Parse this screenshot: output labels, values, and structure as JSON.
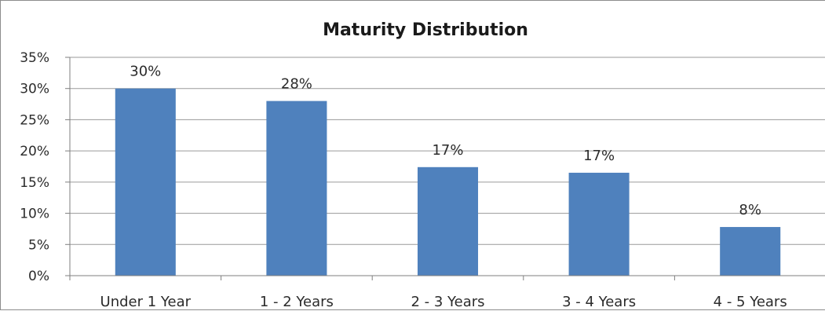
{
  "chart_data": {
    "type": "bar",
    "title": "Maturity Distribution",
    "categories": [
      "Under 1 Year",
      "1 - 2 Years",
      "2 - 3 Years",
      "3 - 4 Years",
      "4 - 5 Years"
    ],
    "values": [
      30,
      28,
      17.4,
      16.5,
      7.8
    ],
    "data_labels": [
      "30%",
      "28%",
      "17%",
      "17%",
      "8%"
    ],
    "y_ticks": [
      0,
      5,
      10,
      15,
      20,
      25,
      30,
      35
    ],
    "y_tick_labels": [
      "0%",
      "5%",
      "10%",
      "15%",
      "20%",
      "25%",
      "30%",
      "35%"
    ],
    "ylim": [
      0,
      35
    ],
    "xlabel": "",
    "ylabel": "",
    "grid": true,
    "legend": "none",
    "bar_color": "#4f81bd"
  }
}
